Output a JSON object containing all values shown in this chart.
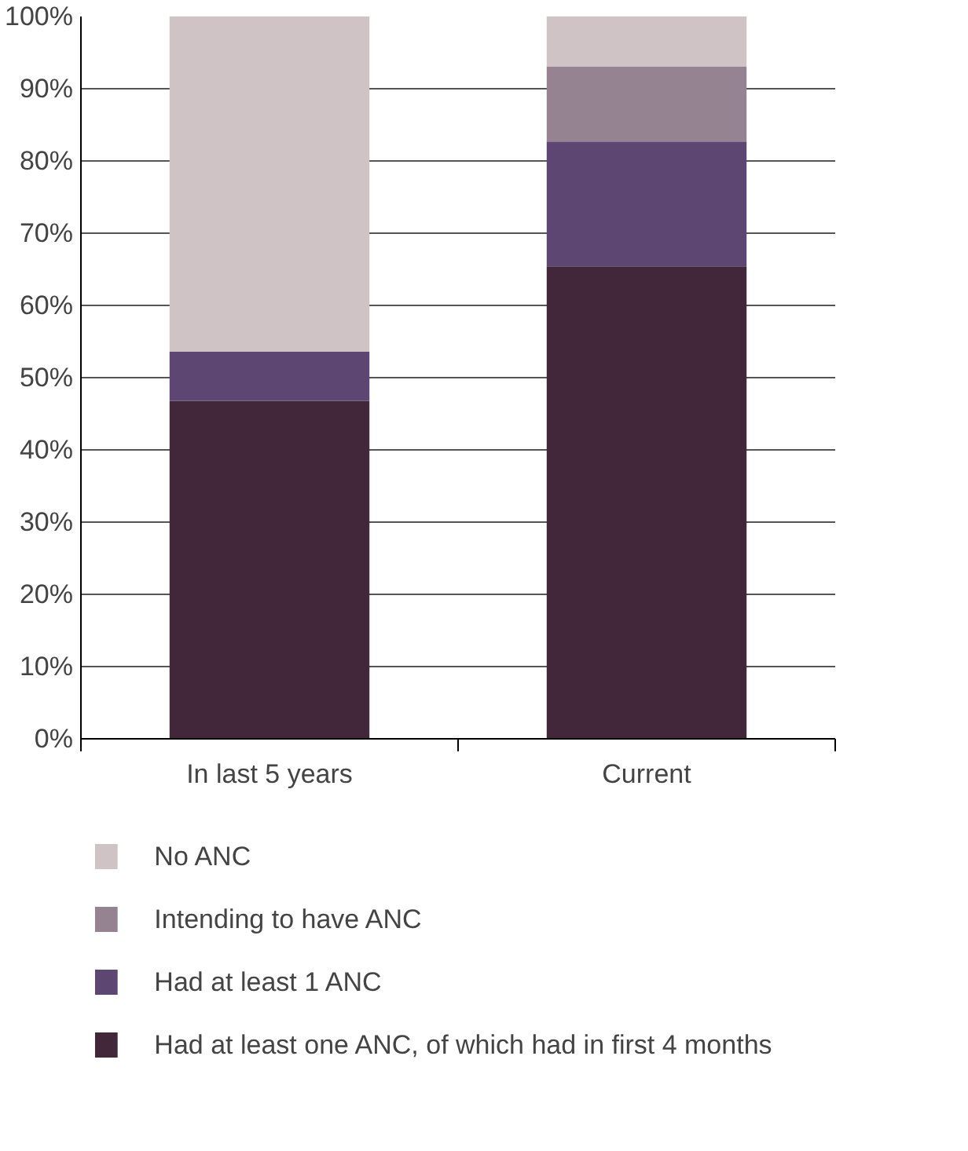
{
  "chart_data": {
    "type": "bar",
    "stacked": true,
    "categories": [
      "In last 5 years",
      "Current"
    ],
    "series": [
      {
        "name": "Had at least one ANC, of which had in first 4 months",
        "color": "#42273a",
        "values": [
          46.8,
          65.4
        ]
      },
      {
        "name": "Had at least 1 ANC",
        "color": "#5e4673",
        "values": [
          6.8,
          17.3
        ]
      },
      {
        "name": "Intending to have ANC",
        "color": "#968392",
        "values": [
          null,
          10.4
        ]
      },
      {
        "name": "No ANC",
        "color": "#cfc3c5",
        "values": [
          46.4,
          6.9
        ]
      }
    ],
    "ylim": [
      0,
      100
    ],
    "yticks": [
      {
        "value": 0,
        "label": "0%"
      },
      {
        "value": 10,
        "label": "10%"
      },
      {
        "value": 20,
        "label": "20%"
      },
      {
        "value": 30,
        "label": "30%"
      },
      {
        "value": 40,
        "label": "40%"
      },
      {
        "value": 50,
        "label": "50%"
      },
      {
        "value": 60,
        "label": "60%"
      },
      {
        "value": 70,
        "label": "70%"
      },
      {
        "value": 80,
        "label": "80%"
      },
      {
        "value": 90,
        "label": "90%"
      },
      {
        "value": 100,
        "label": "100%"
      }
    ],
    "grid": "y",
    "legend": "bottom"
  }
}
